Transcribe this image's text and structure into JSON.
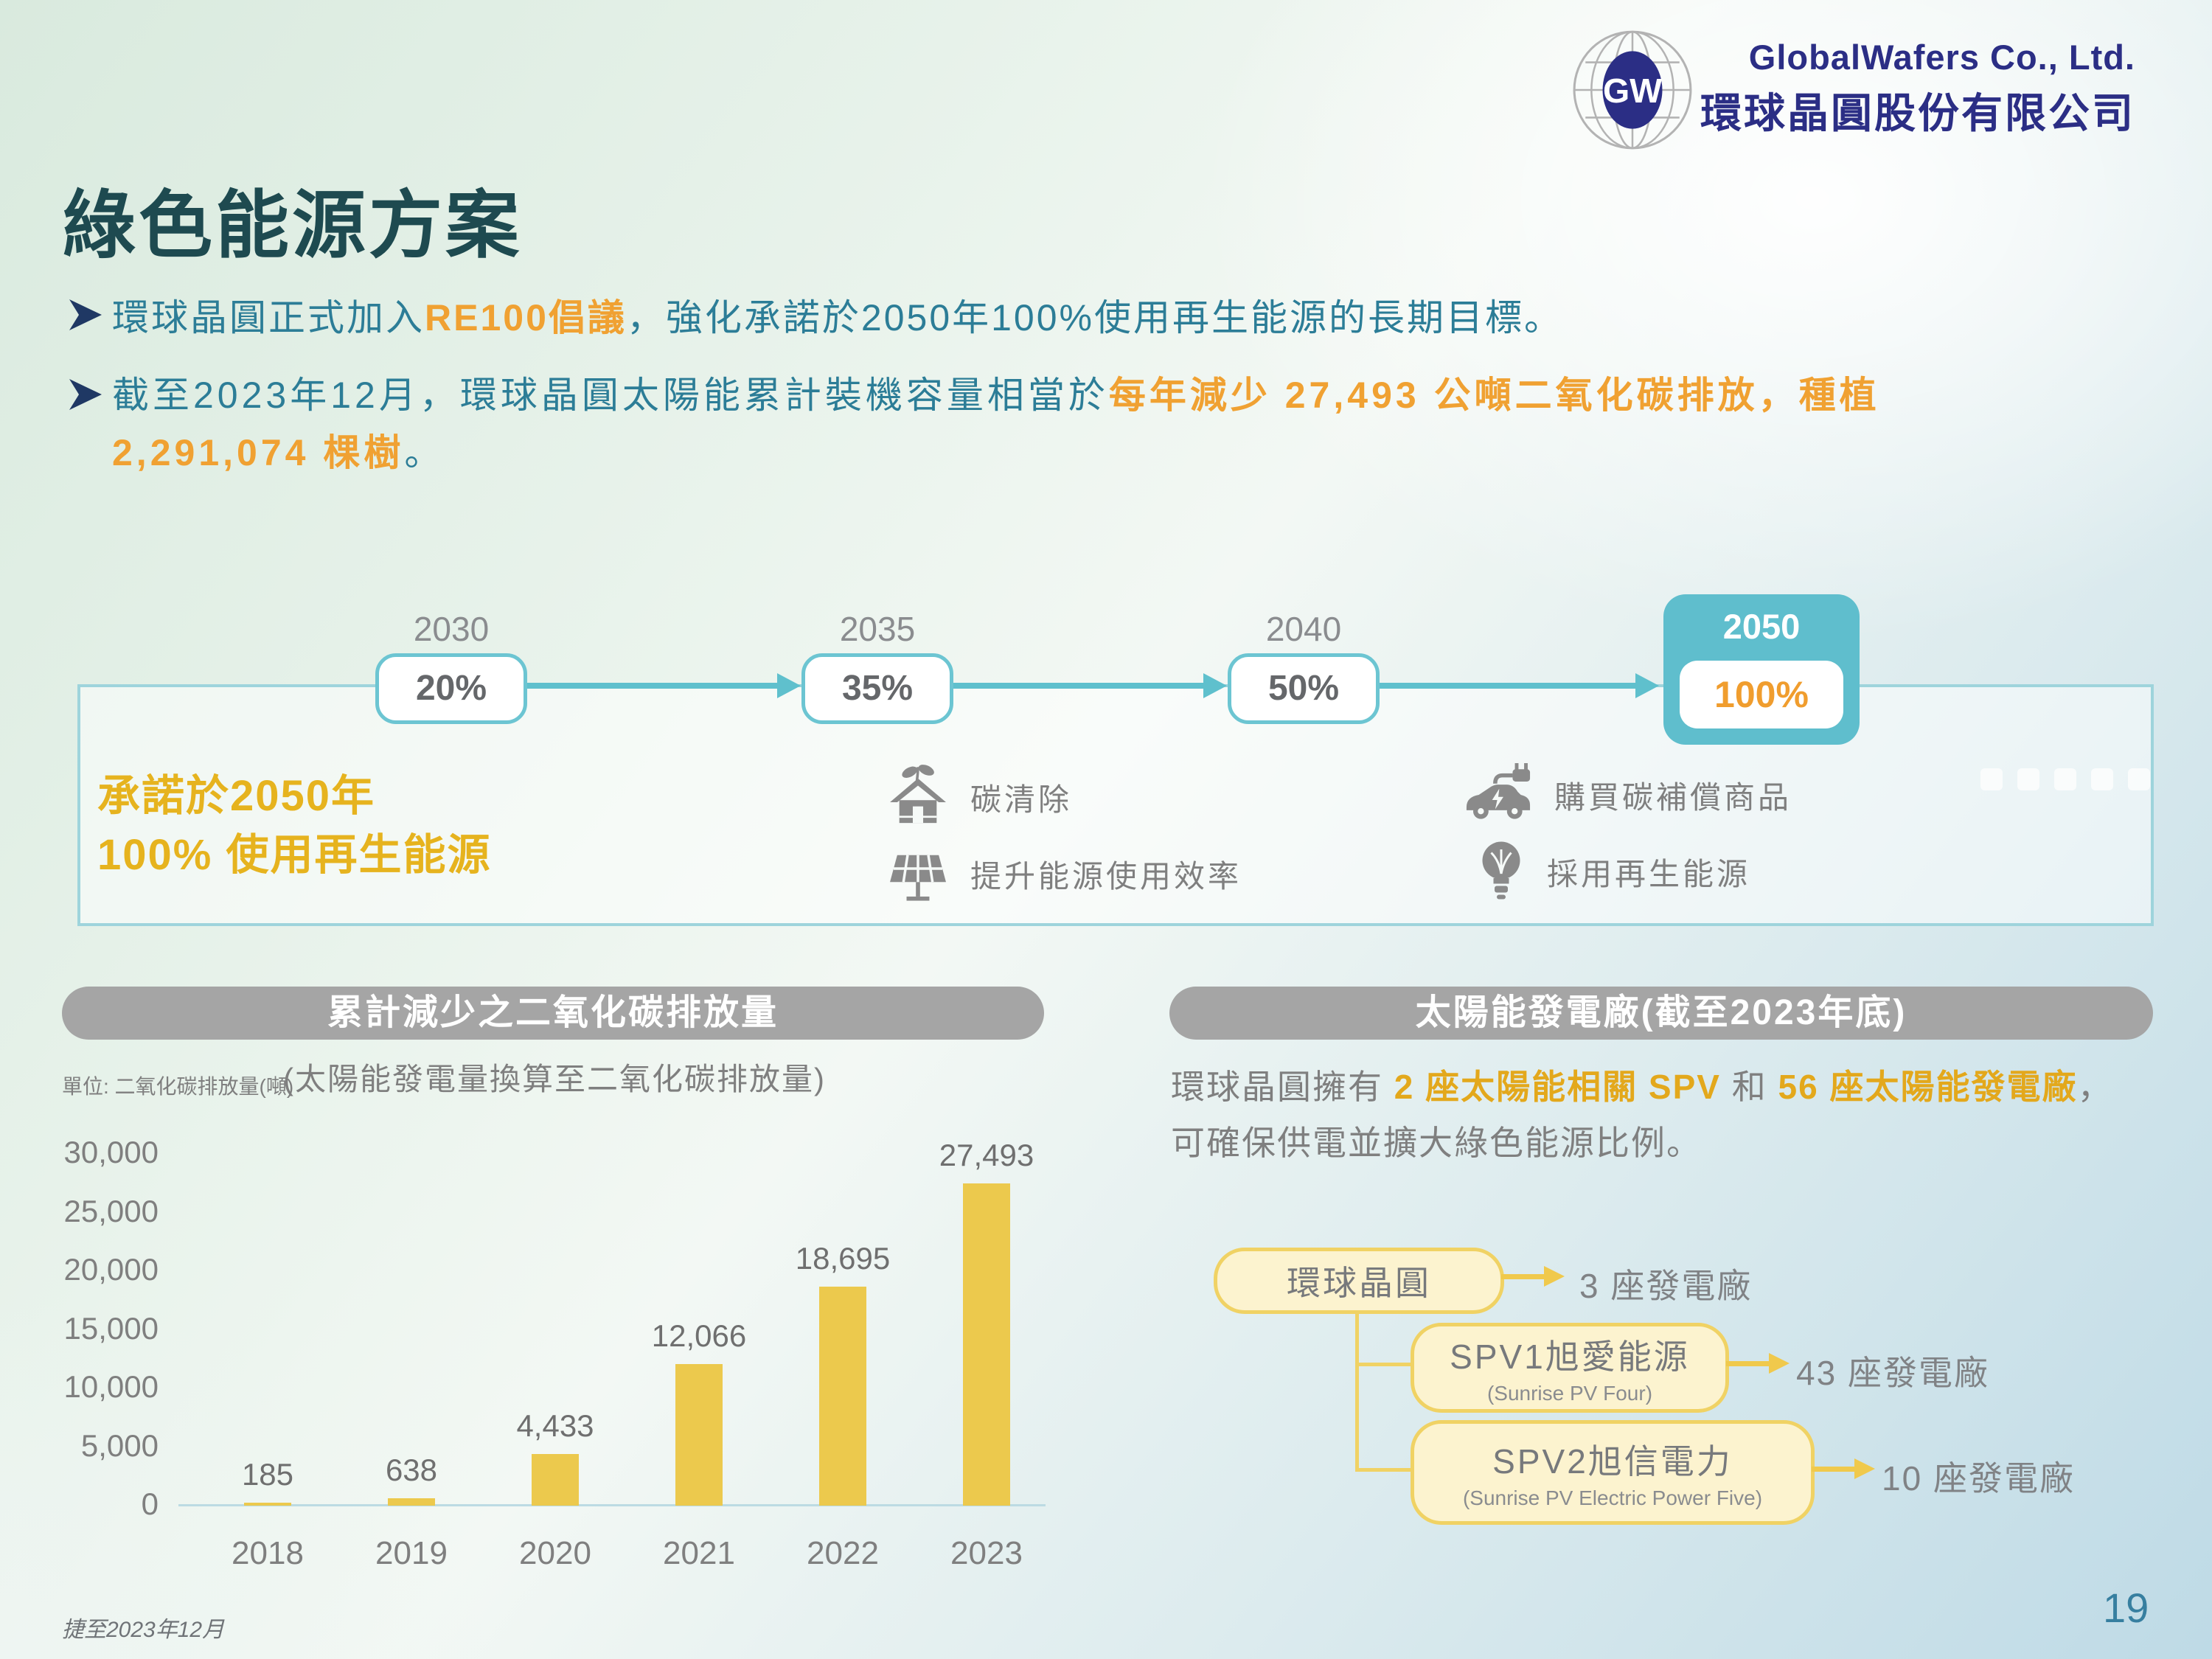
{
  "logo": {
    "gw": "GW",
    "name_en": "GlobalWafers  Co.,  Ltd.",
    "name_zh": "環球晶圓股份有限公司"
  },
  "title": "綠色能源方案",
  "bullets": {
    "b1_pre": "環球晶圓正式加入",
    "b1_highlight": "RE100倡議",
    "b1_post": "，強化承諾於2050年100%使用再生能源的長期目標。",
    "b2_pre": "截至2023年12月，環球晶圓太陽能累計裝機容量相當於",
    "b2_h1": "每年減少 27,493 公噸二氧化碳排放，種植",
    "b2_h2": "2,291,074 棵樹",
    "b2_post": "。"
  },
  "timeline": {
    "milestones": [
      {
        "year": "2030",
        "value": "20%"
      },
      {
        "year": "2035",
        "value": "35%"
      },
      {
        "year": "2040",
        "value": "50%"
      },
      {
        "year": "2050",
        "value": "100%"
      }
    ],
    "commitment_line1": "承諾於2050年",
    "commitment_line2": "100% 使用再生能源",
    "actions": [
      {
        "icon": "eco-house-icon",
        "label": "碳清除"
      },
      {
        "icon": "solar-panel-icon",
        "label": "提升能源使用效率"
      },
      {
        "icon": "ev-plug-icon",
        "label": "購買碳補償商品"
      },
      {
        "icon": "bulb-leaf-icon",
        "label": "採用再生能源"
      }
    ]
  },
  "left_panel": {
    "header": "累計減少之二氧化碳排放量",
    "unit": "單位: 二氧化碳排放量(噸)",
    "subtitle": "(太陽能發電量換算至二氧化碳排放量)"
  },
  "chart_data": {
    "type": "bar",
    "title": "累計減少之二氧化碳排放量",
    "xlabel": "",
    "ylabel": "二氧化碳排放量(噸)",
    "categories": [
      "2018",
      "2019",
      "2020",
      "2021",
      "2022",
      "2023"
    ],
    "values": [
      185,
      638,
      4433,
      12066,
      18695,
      27493
    ],
    "value_labels": [
      "185",
      "638",
      "4,433",
      "12,066",
      "18,695",
      "27,493"
    ],
    "ylim": [
      0,
      30000
    ],
    "yticks": [
      0,
      5000,
      10000,
      15000,
      20000,
      25000,
      30000
    ],
    "ytick_labels": [
      "0",
      "5,000",
      "10,000",
      "15,000",
      "20,000",
      "25,000",
      "30,000"
    ],
    "bar_color": "#ecc94d",
    "grid": false,
    "legend": false
  },
  "right_panel": {
    "header": "太陽能發電廠(截至2023年底)",
    "desc_pre": "環球晶圓擁有 ",
    "desc_h1": "2 座太陽能相關 SPV",
    "desc_mid": " 和 ",
    "desc_h2": "56 座太陽能發電廠",
    "desc_post": "，",
    "desc_line2": "可確保供電並擴大綠色能源比例。",
    "tree": [
      {
        "name": "環球晶圓",
        "sub": "",
        "count": "3 座發電廠"
      },
      {
        "name": "SPV1旭愛能源",
        "sub": "(Sunrise PV Four)",
        "count": "43 座發電廠"
      },
      {
        "name": "SPV2旭信電力",
        "sub": "(Sunrise PV Electric Power Five)",
        "count": "10 座發電廠"
      }
    ]
  },
  "footer": {
    "note": "捷至2023年12月",
    "page": "19"
  }
}
